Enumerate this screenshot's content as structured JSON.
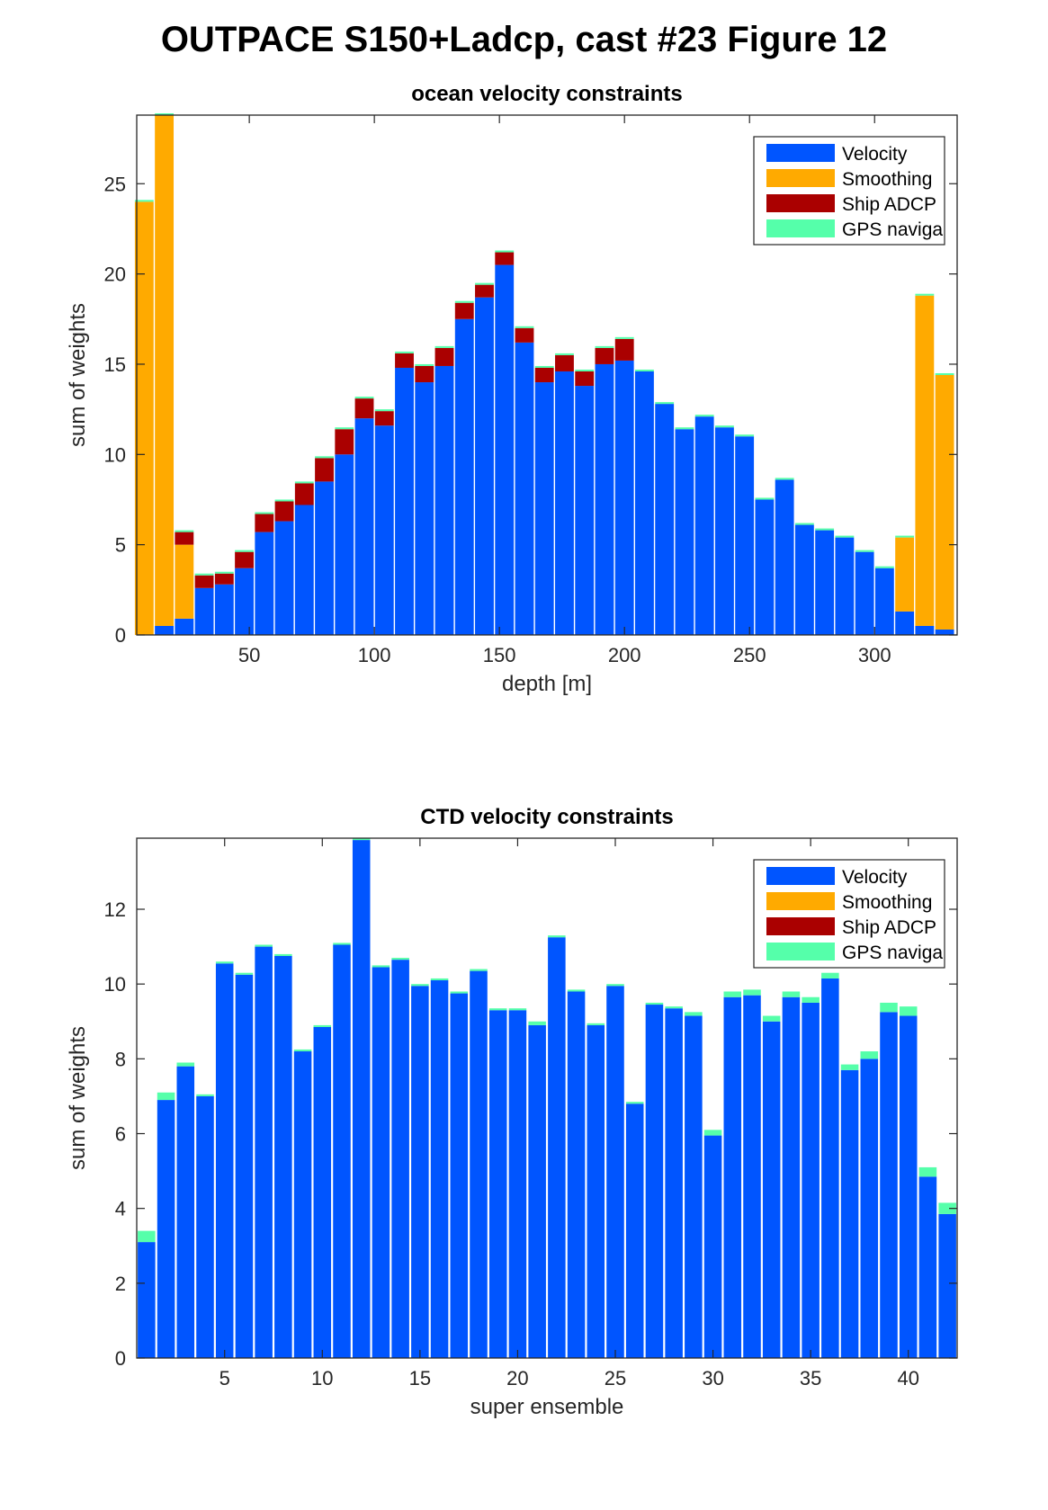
{
  "figure_title": "OUTPACE S150+Ladcp, cast #23  Figure 12",
  "colors": {
    "velocity": "#0055FF",
    "smoothing": "#FFAA00",
    "ship_adcp": "#AA0000",
    "gps": "#55FFAA"
  },
  "chart_data": [
    {
      "type": "bar",
      "stacked": true,
      "title": "ocean velocity constraints",
      "xlabel": "depth [m]",
      "ylabel": "sum of weights",
      "xlim": [
        5,
        333
      ],
      "ylim": [
        0,
        28.8
      ],
      "xticks": [
        50,
        100,
        150,
        200,
        250,
        300
      ],
      "yticks": [
        0,
        5,
        10,
        15,
        20,
        25
      ],
      "legend": [
        "Velocity",
        "Smoothing",
        "Ship ADCP",
        "GPS naviga"
      ],
      "legend_position": "top-right",
      "bar_width": 7.5,
      "x": [
        8,
        16,
        24,
        32,
        40,
        48,
        56,
        64,
        72,
        80,
        88,
        96,
        104,
        112,
        120,
        128,
        136,
        144,
        152,
        160,
        168,
        176,
        184,
        192,
        200,
        208,
        216,
        224,
        232,
        240,
        248,
        256,
        264,
        272,
        280,
        288,
        296,
        304,
        312,
        320,
        328
      ],
      "series": [
        {
          "name": "Velocity",
          "values": [
            0,
            0.5,
            0.9,
            2.6,
            2.8,
            3.7,
            5.7,
            6.3,
            7.2,
            8.5,
            10.0,
            12.0,
            11.6,
            14.8,
            14.0,
            14.9,
            17.5,
            18.7,
            20.5,
            16.2,
            14.0,
            14.6,
            13.8,
            15.0,
            15.2,
            14.6,
            12.8,
            11.4,
            12.1,
            11.5,
            11.0,
            7.5,
            8.6,
            6.1,
            5.8,
            5.4,
            4.6,
            3.7,
            1.3,
            0.5,
            0.3
          ]
        },
        {
          "name": "Smoothing",
          "values": [
            24.0,
            28.3,
            4.1,
            0,
            0,
            0,
            0,
            0,
            0,
            0,
            0,
            0,
            0,
            0,
            0,
            0,
            0,
            0,
            0,
            0,
            0,
            0,
            0,
            0,
            0,
            0,
            0,
            0,
            0,
            0,
            0,
            0,
            0,
            0,
            0,
            0,
            0,
            0,
            4.1,
            18.3,
            14.1
          ]
        },
        {
          "name": "Ship ADCP",
          "values": [
            0,
            0,
            0.7,
            0.7,
            0.6,
            0.9,
            1.0,
            1.1,
            1.2,
            1.3,
            1.4,
            1.1,
            0.8,
            0.8,
            0.9,
            1.0,
            0.9,
            0.7,
            0.7,
            0.8,
            0.8,
            0.9,
            0.8,
            0.9,
            1.2,
            0,
            0,
            0,
            0,
            0,
            0,
            0,
            0,
            0,
            0,
            0,
            0,
            0,
            0,
            0,
            0
          ]
        },
        {
          "name": "GPS naviga",
          "values": [
            0.1,
            0.1,
            0.1,
            0.1,
            0.1,
            0.1,
            0.1,
            0.1,
            0.1,
            0.1,
            0.1,
            0.1,
            0.1,
            0.1,
            0.1,
            0.1,
            0.1,
            0.1,
            0.1,
            0.1,
            0.1,
            0.1,
            0.1,
            0.1,
            0.1,
            0.1,
            0.1,
            0.1,
            0.1,
            0.1,
            0.1,
            0.1,
            0.1,
            0.1,
            0.1,
            0.1,
            0.1,
            0.1,
            0.1,
            0.1,
            0.1
          ]
        }
      ]
    },
    {
      "type": "bar",
      "stacked": true,
      "title": "CTD velocity constraints",
      "xlabel": "super ensemble",
      "ylabel": "sum of weights",
      "xlim": [
        0.5,
        42.5
      ],
      "ylim": [
        0,
        13.9
      ],
      "xticks": [
        5,
        10,
        15,
        20,
        25,
        30,
        35,
        40
      ],
      "yticks": [
        0,
        2,
        4,
        6,
        8,
        10,
        12
      ],
      "legend": [
        "Velocity",
        "Smoothing",
        "Ship ADCP",
        "GPS naviga"
      ],
      "legend_position": "top-right",
      "bar_width": 0.9,
      "x": [
        1,
        2,
        3,
        4,
        5,
        6,
        7,
        8,
        9,
        10,
        11,
        12,
        13,
        14,
        15,
        16,
        17,
        18,
        19,
        20,
        21,
        22,
        23,
        24,
        25,
        26,
        27,
        28,
        29,
        30,
        31,
        32,
        33,
        34,
        35,
        36,
        37,
        38,
        39,
        40,
        41,
        42
      ],
      "series": [
        {
          "name": "Velocity",
          "values": [
            3.1,
            6.9,
            7.8,
            7.0,
            10.55,
            10.25,
            11.0,
            10.75,
            8.2,
            8.85,
            11.05,
            13.85,
            10.45,
            10.65,
            9.95,
            10.1,
            9.75,
            10.35,
            9.3,
            9.3,
            8.9,
            11.25,
            9.8,
            8.9,
            9.95,
            6.8,
            9.45,
            9.35,
            9.15,
            5.95,
            9.65,
            9.7,
            9.0,
            9.65,
            9.5,
            10.15,
            7.7,
            8.0,
            9.25,
            9.15,
            4.85,
            3.85
          ]
        },
        {
          "name": "Smoothing",
          "values": [
            0,
            0,
            0,
            0,
            0,
            0,
            0,
            0,
            0,
            0,
            0,
            0,
            0,
            0,
            0,
            0,
            0,
            0,
            0,
            0,
            0,
            0,
            0,
            0,
            0,
            0,
            0,
            0,
            0,
            0,
            0,
            0,
            0,
            0,
            0,
            0,
            0,
            0,
            0,
            0,
            0,
            0
          ]
        },
        {
          "name": "Ship ADCP",
          "values": [
            0,
            0,
            0,
            0,
            0,
            0,
            0,
            0,
            0,
            0,
            0,
            0,
            0,
            0,
            0,
            0,
            0,
            0,
            0,
            0,
            0,
            0,
            0,
            0,
            0,
            0,
            0,
            0,
            0,
            0,
            0,
            0,
            0,
            0,
            0,
            0,
            0,
            0,
            0,
            0,
            0,
            0
          ]
        },
        {
          "name": "GPS naviga",
          "values": [
            0.3,
            0.2,
            0.1,
            0.05,
            0.05,
            0.05,
            0.05,
            0.05,
            0.05,
            0.05,
            0.05,
            0.05,
            0.05,
            0.05,
            0.05,
            0.05,
            0.05,
            0.05,
            0.05,
            0.05,
            0.1,
            0.05,
            0.05,
            0.05,
            0.05,
            0.05,
            0.05,
            0.05,
            0.1,
            0.15,
            0.15,
            0.15,
            0.15,
            0.15,
            0.15,
            0.15,
            0.15,
            0.2,
            0.25,
            0.25,
            0.25,
            0.3
          ]
        }
      ]
    }
  ]
}
